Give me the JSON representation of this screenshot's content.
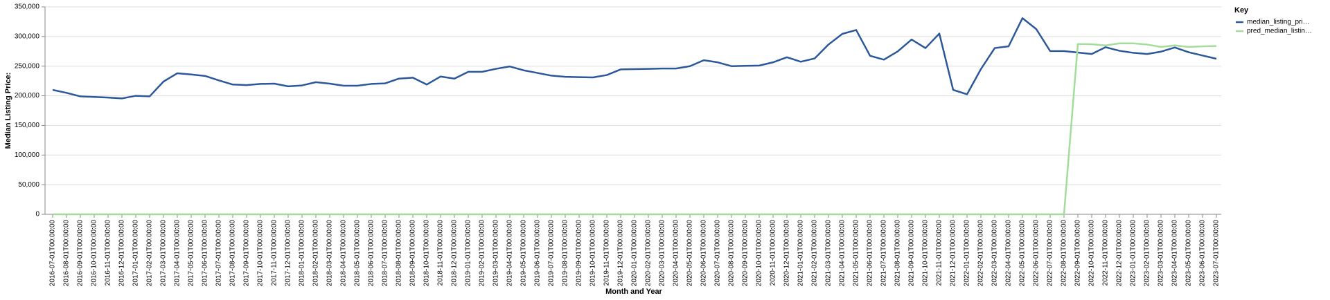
{
  "chart_data": {
    "type": "line",
    "x_label": "Month and Year",
    "y_label": "Median Listing Price:",
    "legend_title": "Key",
    "legend_position": "right",
    "grid": true,
    "categories": [
      "2016-07-01T00:00:00",
      "2016-08-01T00:00:00",
      "2016-09-01T00:00:00",
      "2016-10-01T00:00:00",
      "2016-11-01T00:00:00",
      "2016-12-01T00:00:00",
      "2017-01-01T00:00:00",
      "2017-02-01T00:00:00",
      "2017-03-01T00:00:00",
      "2017-04-01T00:00:00",
      "2017-05-01T00:00:00",
      "2017-06-01T00:00:00",
      "2017-07-01T00:00:00",
      "2017-08-01T00:00:00",
      "2017-09-01T00:00:00",
      "2017-10-01T00:00:00",
      "2017-11-01T00:00:00",
      "2017-12-01T00:00:00",
      "2018-01-01T00:00:00",
      "2018-02-01T00:00:00",
      "2018-03-01T00:00:00",
      "2018-04-01T00:00:00",
      "2018-05-01T00:00:00",
      "2018-06-01T00:00:00",
      "2018-07-01T00:00:00",
      "2018-08-01T00:00:00",
      "2018-09-01T00:00:00",
      "2018-10-01T00:00:00",
      "2018-11-01T00:00:00",
      "2018-12-01T00:00:00",
      "2019-01-01T00:00:00",
      "2019-02-01T00:00:00",
      "2019-03-01T00:00:00",
      "2019-04-01T00:00:00",
      "2019-05-01T00:00:00",
      "2019-06-01T00:00:00",
      "2019-07-01T00:00:00",
      "2019-08-01T00:00:00",
      "2019-09-01T00:00:00",
      "2019-10-01T00:00:00",
      "2019-11-01T00:00:00",
      "2019-12-01T00:00:00",
      "2020-01-01T00:00:00",
      "2020-02-01T00:00:00",
      "2020-03-01T00:00:00",
      "2020-04-01T00:00:00",
      "2020-05-01T00:00:00",
      "2020-06-01T00:00:00",
      "2020-07-01T00:00:00",
      "2020-08-01T00:00:00",
      "2020-09-01T00:00:00",
      "2020-10-01T00:00:00",
      "2020-11-01T00:00:00",
      "2020-12-01T00:00:00",
      "2021-01-01T00:00:00",
      "2021-02-01T00:00:00",
      "2021-03-01T00:00:00",
      "2021-04-01T00:00:00",
      "2021-05-01T00:00:00",
      "2021-06-01T00:00:00",
      "2021-07-01T00:00:00",
      "2021-08-01T00:00:00",
      "2021-09-01T00:00:00",
      "2021-10-01T00:00:00",
      "2021-11-01T00:00:00",
      "2021-12-01T00:00:00",
      "2022-01-01T00:00:00",
      "2022-02-01T00:00:00",
      "2022-03-01T00:00:00",
      "2022-04-01T00:00:00",
      "2022-05-01T00:00:00",
      "2022-06-01T00:00:00",
      "2022-07-01T00:00:00",
      "2022-08-01T00:00:00",
      "2022-09-01T00:00:00",
      "2022-10-01T00:00:00",
      "2022-11-01T00:00:00",
      "2022-12-01T00:00:00",
      "2023-01-01T00:00:00",
      "2023-02-01T00:00:00",
      "2023-03-01T00:00:00",
      "2023-04-01T00:00:00",
      "2023-05-01T00:00:00",
      "2023-06-01T00:00:00",
      "2023-07-01T00:00:00"
    ],
    "series": [
      {
        "name": "median_listing_pri…",
        "color": "#2b579b",
        "values": [
          210000,
          205000,
          199000,
          198000,
          197000,
          195500,
          200000,
          199000,
          224000,
          238000,
          236000,
          233500,
          226000,
          219000,
          218000,
          220000,
          220500,
          216000,
          217500,
          223000,
          220500,
          217000,
          217000,
          220000,
          221000,
          229000,
          230500,
          219000,
          232500,
          229000,
          240500,
          240500,
          245500,
          249500,
          243000,
          238500,
          234000,
          232000,
          231500,
          231000,
          235000,
          244500,
          245000,
          245500,
          246000,
          246000,
          250000,
          260000,
          256500,
          250000,
          250500,
          251000,
          256500,
          265000,
          257500,
          263000,
          286500,
          304500,
          311000,
          267500,
          261000,
          275000,
          295000,
          280500,
          305000,
          210000,
          202500,
          245000,
          280500,
          283500,
          331000,
          312500,
          275500,
          275500,
          273000,
          270500,
          282000,
          276000,
          272500,
          270500,
          274500,
          281500,
          273500,
          268000,
          262500
        ]
      },
      {
        "name": "pred_median_listin…",
        "color": "#a3dc9b",
        "values": [
          0,
          0,
          0,
          0,
          0,
          0,
          0,
          0,
          0,
          0,
          0,
          0,
          0,
          0,
          0,
          0,
          0,
          0,
          0,
          0,
          0,
          0,
          0,
          0,
          0,
          0,
          0,
          0,
          0,
          0,
          0,
          0,
          0,
          0,
          0,
          0,
          0,
          0,
          0,
          0,
          0,
          0,
          0,
          0,
          0,
          0,
          0,
          0,
          0,
          0,
          0,
          0,
          0,
          0,
          0,
          0,
          0,
          0,
          0,
          0,
          0,
          0,
          0,
          0,
          0,
          0,
          0,
          0,
          0,
          0,
          0,
          0,
          0,
          0,
          287500,
          287000,
          285000,
          288500,
          288500,
          286500,
          282500,
          285000,
          282500,
          283500,
          284000
        ]
      }
    ],
    "ylim": [
      0,
      350000
    ],
    "yticks": [
      0,
      {
        "value": 50000,
        "label": "50,000"
      },
      {
        "value": 100000,
        "label": "100,000"
      },
      {
        "value": 150000,
        "label": "150,000"
      },
      {
        "value": 200000,
        "label": "200,000"
      },
      {
        "value": 250000,
        "label": "250,000"
      },
      {
        "value": 300000,
        "label": "300,000"
      },
      {
        "value": 350000,
        "label": "350,000"
      }
    ]
  }
}
